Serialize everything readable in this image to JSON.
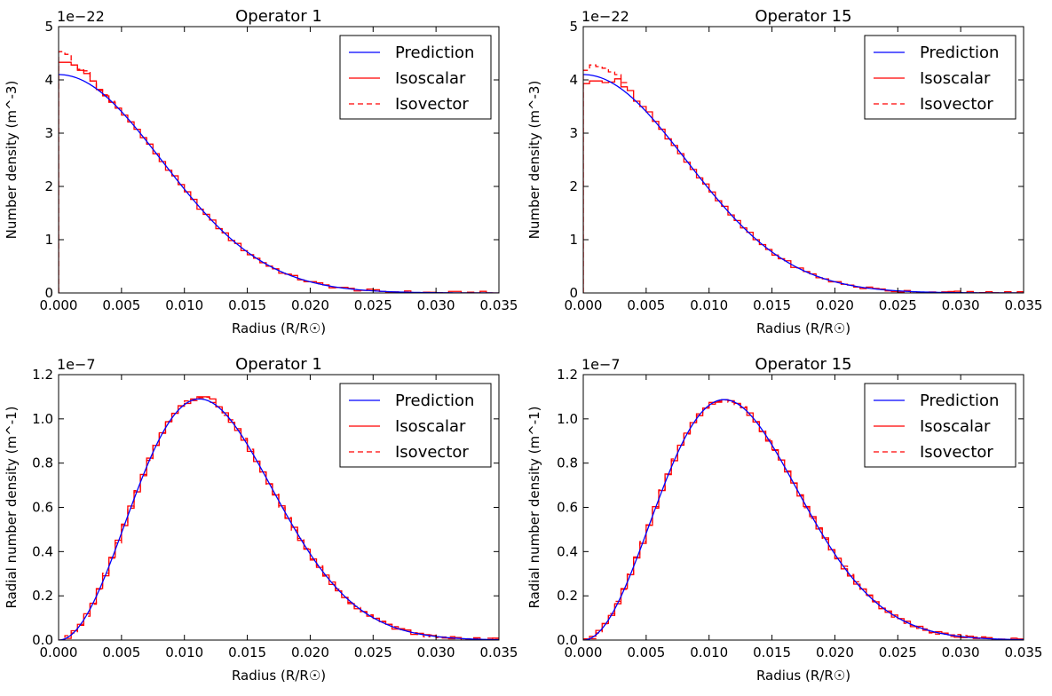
{
  "colors": {
    "prediction": "#0000ff",
    "isoscalar": "#ff0000",
    "isovector": "#ff0000"
  },
  "chart_data": [
    {
      "type": "line",
      "title": "Operator 1",
      "xlabel": "Radius  (R/R☉)",
      "ylabel": "Number density  (m^-3)",
      "y_offset_label": "1e−22",
      "xlim": [
        0,
        0.035
      ],
      "ylim": [
        0,
        5
      ],
      "xticks": [
        "0.000",
        "0.005",
        "0.010",
        "0.015",
        "0.020",
        "0.025",
        "0.030",
        "0.035"
      ],
      "yticks": [
        "0",
        "1",
        "2",
        "3",
        "4",
        "5"
      ],
      "legend": [
        "Prediction",
        "Isoscalar",
        "Isovector"
      ],
      "legend_location": "top-right",
      "prediction_model": {
        "shape": "gaussian",
        "amplitude": 4.1,
        "sigma": 0.0082,
        "radial_weight": 0
      },
      "series": [
        {
          "name": "Isoscalar",
          "style": "step",
          "bin_width": 0.0005,
          "x": [
            0.0,
            0.0005,
            0.001,
            0.0015,
            0.002,
            0.0025,
            0.003,
            0.0035,
            0.004,
            0.0045,
            0.005
          ],
          "values": [
            4.33,
            4.33,
            4.28,
            4.18,
            4.12,
            3.98,
            3.82,
            3.7,
            3.58,
            3.47,
            3.34
          ]
        },
        {
          "name": "Isovector",
          "style": "step-dashed",
          "bin_width": 0.0005,
          "x": [
            0.0,
            0.0005,
            0.001,
            0.0015,
            0.002,
            0.0025,
            0.003,
            0.0035,
            0.004
          ],
          "values": [
            4.53,
            4.48,
            4.28,
            4.2,
            4.17,
            3.98,
            3.8,
            3.72,
            3.6
          ]
        }
      ]
    },
    {
      "type": "line",
      "title": "Operator 15",
      "xlabel": "Radius  (R/R☉)",
      "ylabel": "Number density  (m^-3)",
      "y_offset_label": "1e−22",
      "xlim": [
        0,
        0.035
      ],
      "ylim": [
        0,
        5
      ],
      "xticks": [
        "0.000",
        "0.005",
        "0.010",
        "0.015",
        "0.020",
        "0.025",
        "0.030",
        "0.035"
      ],
      "yticks": [
        "0",
        "1",
        "2",
        "3",
        "4",
        "5"
      ],
      "legend": [
        "Prediction",
        "Isoscalar",
        "Isovector"
      ],
      "legend_location": "top-right",
      "prediction_model": {
        "shape": "gaussian",
        "amplitude": 4.1,
        "sigma": 0.0082,
        "radial_weight": 0
      },
      "series": [
        {
          "name": "Isoscalar",
          "style": "step",
          "bin_width": 0.0005,
          "x": [
            0.0,
            0.0005,
            0.001,
            0.0015,
            0.002,
            0.0025,
            0.003,
            0.0035,
            0.004,
            0.0045,
            0.005
          ],
          "values": [
            3.93,
            3.98,
            3.98,
            3.95,
            3.96,
            4.02,
            3.87,
            3.8,
            3.6,
            3.5,
            3.4
          ]
        },
        {
          "name": "Isovector",
          "style": "step-dashed",
          "bin_width": 0.0005,
          "x": [
            0.0,
            0.0005,
            0.001,
            0.0015,
            0.002,
            0.0025,
            0.003
          ],
          "values": [
            4.18,
            4.28,
            4.25,
            4.22,
            4.15,
            4.1,
            3.95
          ]
        }
      ]
    },
    {
      "type": "line",
      "title": "Operator 1",
      "xlabel": "Radius (R/R☉)",
      "ylabel": "Radial number density  (m^-1)",
      "y_offset_label": "1e−7",
      "xlim": [
        0,
        0.035
      ],
      "ylim": [
        0,
        1.2
      ],
      "xticks": [
        "0.000",
        "0.005",
        "0.010",
        "0.015",
        "0.020",
        "0.025",
        "0.030",
        "0.035"
      ],
      "yticks": [
        "0.0",
        "0.2",
        "0.4",
        "0.6",
        "0.8",
        "1.0",
        "1.2"
      ],
      "legend": [
        "Prediction",
        "Isoscalar",
        "Isovector"
      ],
      "legend_location": "top-right",
      "prediction_model": {
        "shape": "maxwellian",
        "peak_x": 0.0112,
        "peak_y": 1.09,
        "radial_weight": 2
      },
      "series": [
        {
          "name": "Isoscalar",
          "style": "step",
          "bin_width": 0.0005,
          "x": [
            0.0105,
            0.011,
            0.0115,
            0.012
          ],
          "values": [
            1.09,
            1.1,
            1.1,
            1.09
          ]
        },
        {
          "name": "Isovector",
          "style": "step-dashed",
          "bin_width": 0.0005,
          "x": [
            0.011,
            0.0115
          ],
          "values": [
            1.095,
            1.098
          ]
        }
      ]
    },
    {
      "type": "line",
      "title": "Operator 15",
      "xlabel": "Radius (R/R☉)",
      "ylabel": "Radial number density  (m^-1)",
      "y_offset_label": "1e−7",
      "xlim": [
        0,
        0.035
      ],
      "ylim": [
        0,
        1.2
      ],
      "xticks": [
        "0.000",
        "0.005",
        "0.010",
        "0.015",
        "0.020",
        "0.025",
        "0.030",
        "0.035"
      ],
      "yticks": [
        "0.0",
        "0.2",
        "0.4",
        "0.6",
        "0.8",
        "1.0",
        "1.2"
      ],
      "legend": [
        "Prediction",
        "Isoscalar",
        "Isovector"
      ],
      "legend_location": "top-right",
      "prediction_model": {
        "shape": "maxwellian",
        "peak_x": 0.0112,
        "peak_y": 1.087,
        "radial_weight": 2
      },
      "series": [
        {
          "name": "Isoscalar",
          "style": "step",
          "bin_width": 0.0005,
          "x": [
            0.0105,
            0.011,
            0.0115
          ],
          "values": [
            1.075,
            1.087,
            1.082
          ]
        },
        {
          "name": "Isovector",
          "style": "step-dashed",
          "bin_width": 0.0005,
          "x": [
            0.0105,
            0.011
          ],
          "values": [
            1.08,
            1.085
          ]
        }
      ]
    }
  ]
}
